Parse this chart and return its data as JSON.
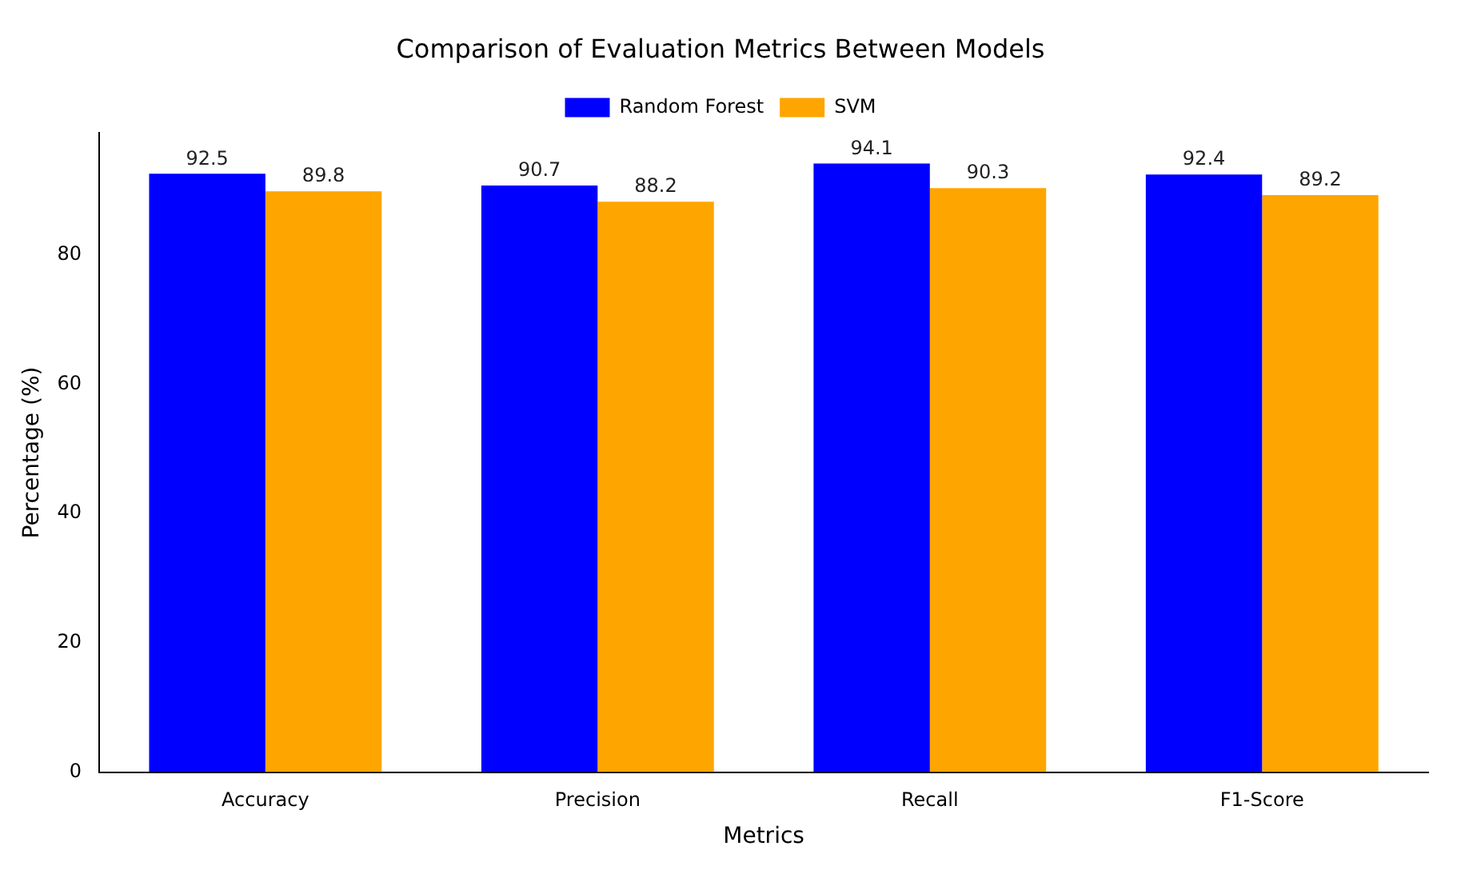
{
  "chart_data": {
    "type": "bar",
    "title": "Comparison of Evaluation Metrics Between Models",
    "xlabel": "Metrics",
    "ylabel": "Percentage (%)",
    "categories": [
      "Accuracy",
      "Precision",
      "Recall",
      "F1-Score"
    ],
    "series": [
      {
        "name": "Random Forest",
        "color": "#0000ff",
        "values": [
          92.5,
          90.7,
          94.1,
          92.4
        ]
      },
      {
        "name": "SVM",
        "color": "#ffa500",
        "values": [
          89.8,
          88.2,
          90.3,
          89.2
        ]
      }
    ],
    "ylim": [
      0,
      98.8
    ],
    "yticks": [
      0,
      20,
      40,
      60,
      80
    ],
    "grid": false,
    "legend": "top",
    "data_labels": true
  }
}
